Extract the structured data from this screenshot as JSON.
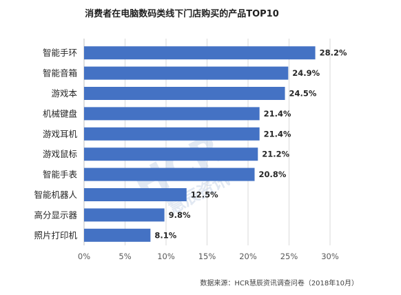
{
  "chart_data": {
    "type": "bar",
    "orientation": "horizontal",
    "title": "消费者在电脑数码类线下门店购买的产品TOP10",
    "categories": [
      "智能手环",
      "智能音箱",
      "游戏本",
      "机械键盘",
      "游戏耳机",
      "游戏鼠标",
      "智能手表",
      "智能机器人",
      "高分显示器",
      "照片打印机"
    ],
    "values": [
      28.2,
      24.9,
      24.5,
      21.4,
      21.4,
      21.2,
      20.8,
      12.5,
      9.8,
      8.1
    ],
    "value_labels": [
      "28.2%",
      "24.9%",
      "24.5%",
      "21.4%",
      "21.4%",
      "21.2%",
      "20.8%",
      "12.5%",
      "9.8%",
      "8.1%"
    ],
    "x_ticks": [
      0,
      5,
      10,
      15,
      20,
      25,
      30
    ],
    "x_tick_labels": [
      "0%",
      "5%",
      "10%",
      "15%",
      "20%",
      "25%",
      "30%"
    ],
    "xlim": [
      0,
      30
    ],
    "grid": true,
    "bar_color": "#4472c4",
    "legend": false
  },
  "source": "数据来源：HCR慧辰资讯调查问卷（2018年10月）",
  "watermark": {
    "line1": "HCR",
    "line2": "慧辰资讯",
    "color": "#c9d6e8"
  }
}
